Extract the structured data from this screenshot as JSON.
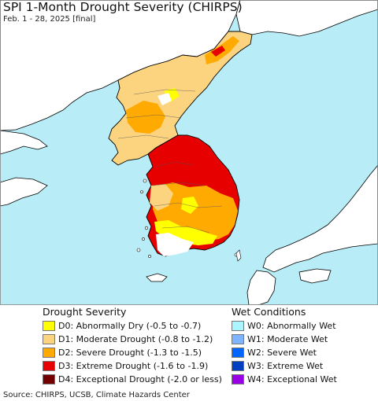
{
  "header": {
    "title": "SPI 1-Month Drought Severity (CHIRPS)",
    "subtitle": "Feb. 1 - 28, 2025 [final]"
  },
  "map": {
    "ocean_color": "#b8ecf6",
    "land_color": "#ffffff",
    "border_color": "#000000"
  },
  "legend": {
    "drought": {
      "title": "Drought Severity",
      "items": [
        {
          "label": "D0: Abnormally Dry (-0.5 to -0.7)",
          "color": "#ffff00"
        },
        {
          "label": "D1: Moderate Drought (-0.8 to -1.2)",
          "color": "#fcd37f"
        },
        {
          "label": "D2: Severe Drought (-1.3 to -1.5)",
          "color": "#ffaa00"
        },
        {
          "label": "D3: Extreme Drought (-1.6 to -1.9)",
          "color": "#e60000"
        },
        {
          "label": "D4: Exceptional Drought (-2.0 or less)",
          "color": "#730000"
        }
      ]
    },
    "wet": {
      "title": "Wet Conditions",
      "items": [
        {
          "label": "W0: Abnormally Wet",
          "color": "#aaf5ff"
        },
        {
          "label": "W1: Moderate Wet",
          "color": "#7fb4ff"
        },
        {
          "label": "W2: Severe Wet",
          "color": "#0066ff"
        },
        {
          "label": "W3: Extreme Wet",
          "color": "#0040c0"
        },
        {
          "label": "W4: Exceptional Wet",
          "color": "#9a00e6"
        }
      ]
    }
  },
  "footer": {
    "source": "Source: CHIRPS, UCSB, Climate Hazards Center"
  }
}
